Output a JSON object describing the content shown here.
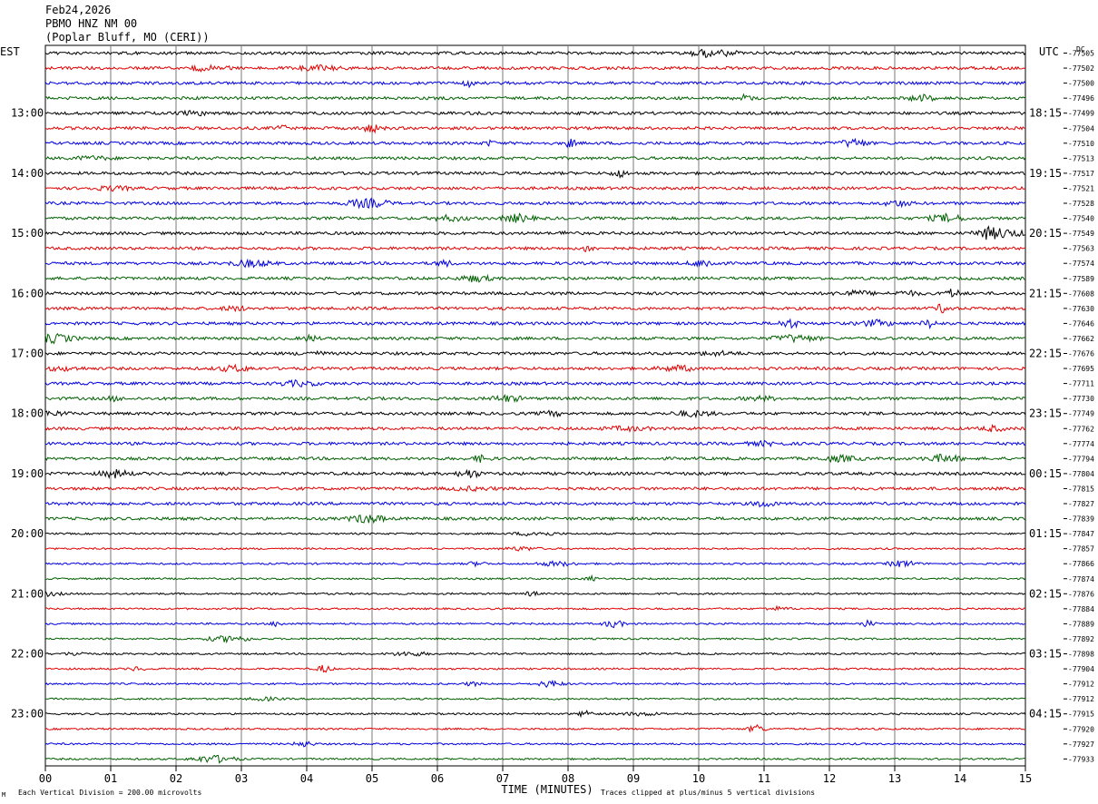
{
  "header": {
    "date": "Feb24,2026",
    "station": "PBMO HNZ NM 00",
    "location": "(Poplar Bluff, MO (CERI))"
  },
  "chart_data": {
    "type": "line",
    "subtype": "helicorder",
    "left_timezone": "EST",
    "right_timezone": "UTC",
    "right_units": "DC",
    "xlabel": "TIME (MINUTES)",
    "xlim": [
      0,
      15
    ],
    "x_ticks": [
      "00",
      "01",
      "02",
      "03",
      "04",
      "05",
      "06",
      "07",
      "08",
      "09",
      "10",
      "11",
      "12",
      "13",
      "14",
      "15"
    ],
    "trace_colors": [
      "#000000",
      "#e00000",
      "#0000e0",
      "#006000"
    ],
    "left_hour_labels": [
      "13:00",
      "14:00",
      "15:00",
      "16:00",
      "17:00",
      "18:00",
      "19:00",
      "20:00",
      "21:00",
      "22:00",
      "23:00"
    ],
    "right_hour_labels": [
      "18:15",
      "19:15",
      "20:15",
      "21:15",
      "22:15",
      "23:15",
      "00:15",
      "01:15",
      "02:15",
      "03:15",
      "04:15"
    ],
    "dc_offsets": [
      "-77505",
      "-77502",
      "-77500",
      "-77496",
      "-77499",
      "-77504",
      "-77510",
      "-77513",
      "-77517",
      "-77521",
      "-77528",
      "-77540",
      "-77549",
      "-77563",
      "-77574",
      "-77589",
      "-77608",
      "-77630",
      "-77646",
      "-77662",
      "-77676",
      "-77695",
      "-77711",
      "-77730",
      "-77749",
      "-77762",
      "-77774",
      "-77794",
      "-77804",
      "-77815",
      "-77827",
      "-77839",
      "-77847",
      "-77857",
      "-77866",
      "-77874",
      "-77876",
      "-77884",
      "-77889",
      "-77892",
      "-77898",
      "-77904",
      "-77912",
      "-77912",
      "-77915",
      "-77920",
      "-77927",
      "-77933"
    ],
    "footer_left": "Each Vertical Division =  200.00 microvolts",
    "footer_right": "Traces clipped at plus/minus 5 vertical divisions",
    "footer_mark": "M"
  }
}
